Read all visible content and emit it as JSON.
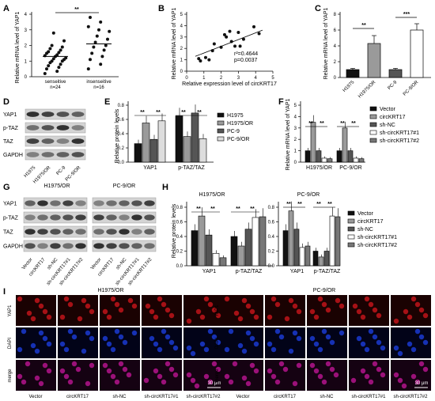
{
  "panels": {
    "A": {
      "label": "A",
      "ylabel": "Relative mRNA level of YAP1",
      "groups": [
        "senseitive",
        "insenseitive"
      ],
      "n": [
        "n=24",
        "n=16"
      ],
      "ticks": [
        "0",
        "1",
        "2",
        "3",
        "4"
      ],
      "sig": "**",
      "chart_data": {
        "type": "scatter",
        "ylim": [
          0,
          4
        ],
        "series": [
          {
            "name": "senseitive",
            "values": [
              0.2,
              0.35,
              0.5,
              0.6,
              0.7,
              0.8,
              0.9,
              1.0,
              1.0,
              1.1,
              1.15,
              1.2,
              1.3,
              1.35,
              1.4,
              1.5,
              1.55,
              1.6,
              1.7,
              1.8,
              1.9,
              2.0,
              2.3,
              2.8
            ]
          },
          {
            "name": "insenseitive",
            "values": [
              0.5,
              0.8,
              1.1,
              1.3,
              1.5,
              1.7,
              1.9,
              2.0,
              2.2,
              2.4,
              2.6,
              2.9,
              3.0,
              3.2,
              3.5,
              3.8
            ]
          }
        ],
        "means": [
          1.3,
          2.1
        ]
      }
    },
    "B": {
      "label": "B",
      "ylabel": "Relative mRNA level of YAP1",
      "xlabel": "Relative expression level of circKRT17",
      "r2": "r²=0.4644",
      "p": "p=0.0037",
      "xticks": [
        "0",
        "1",
        "2",
        "3",
        "4",
        "5"
      ],
      "yticks": [
        "0",
        "1",
        "2",
        "3",
        "4",
        "5"
      ],
      "chart_data": {
        "type": "scatter",
        "xlim": [
          0,
          5
        ],
        "ylim": [
          0,
          5
        ],
        "points": [
          [
            0.7,
            1.1
          ],
          [
            0.8,
            0.9
          ],
          [
            1.1,
            1.2
          ],
          [
            1.3,
            1.0
          ],
          [
            1.5,
            1.8
          ],
          [
            1.6,
            2.4
          ],
          [
            2.0,
            2.1
          ],
          [
            2.2,
            3.2
          ],
          [
            2.3,
            3.0
          ],
          [
            2.5,
            3.5
          ],
          [
            2.6,
            2.6
          ],
          [
            2.8,
            2.2
          ],
          [
            3.0,
            3.4
          ],
          [
            3.1,
            2.2
          ],
          [
            3.3,
            2.8
          ],
          [
            3.9,
            3.9
          ],
          [
            4.2,
            3.3
          ]
        ],
        "fit": [
          [
            0.5,
            1.3
          ],
          [
            4.4,
            3.6
          ]
        ]
      }
    },
    "C": {
      "label": "C",
      "ylabel": "Relative mRNA level of YAP1",
      "yticks": [
        "0",
        "2",
        "4",
        "6",
        "8"
      ],
      "sig": [
        "**",
        "***"
      ],
      "chart_data": {
        "type": "bar",
        "categories": [
          "H1975",
          "H1975/OR",
          "PC-9",
          "PC-9/OR"
        ],
        "values": [
          1.0,
          4.3,
          1.0,
          6.0
        ],
        "errors": [
          0.15,
          1.0,
          0.15,
          0.8
        ],
        "colors": [
          "#111111",
          "#9a9a9a",
          "#555555",
          "#ffffff"
        ],
        "ylim": [
          0,
          8
        ]
      }
    },
    "D": {
      "label": "D",
      "rows": [
        "YAP1",
        "p-TAZ",
        "TAZ",
        "GAPDH"
      ],
      "lanes": [
        "H1975",
        "H1975/OR",
        "PC-9",
        "PC-9/OR"
      ]
    },
    "E": {
      "label": "E",
      "ylabel": "Relative protein levels",
      "yticks": [
        "0.0",
        "0.2",
        "0.4",
        "0.6",
        "0.8"
      ],
      "sig": "**",
      "legend": [
        "H1975",
        "H1975/OR",
        "PC-9",
        "PC-9/OR"
      ],
      "chart_data": {
        "type": "bar",
        "categories": [
          "YAP1",
          "p-TAZ/TAZ"
        ],
        "ylim": [
          0,
          0.8
        ],
        "series": [
          {
            "name": "H1975",
            "values": [
              0.26,
              0.65
            ]
          },
          {
            "name": "H1975/OR",
            "values": [
              0.55,
              0.36
            ]
          },
          {
            "name": "PC-9",
            "values": [
              0.32,
              0.69
            ]
          },
          {
            "name": "PC-9/OR",
            "values": [
              0.58,
              0.33
            ]
          }
        ],
        "colors": [
          "#111111",
          "#9a9a9a",
          "#555555",
          "#dddddd"
        ]
      }
    },
    "F": {
      "label": "F",
      "ylabel": "Relative mRNA level of YAP1",
      "yticks": [
        "0",
        "1",
        "2",
        "3",
        "4",
        "5"
      ],
      "sig": "**",
      "legend": [
        "Vector",
        "circKRT17",
        "sh-NC",
        "sh-circKRT17#1",
        "sh-circKRT17#2"
      ],
      "chart_data": {
        "type": "bar",
        "categories": [
          "H1975/OR",
          "PC-9/OR"
        ],
        "ylim": [
          0,
          5
        ],
        "series": [
          {
            "name": "Vector",
            "values": [
              1.0,
              1.0
            ]
          },
          {
            "name": "circKRT17",
            "values": [
              3.5,
              3.0
            ]
          },
          {
            "name": "sh-NC",
            "values": [
              1.0,
              1.0
            ]
          },
          {
            "name": "sh-circKRT17#1",
            "values": [
              0.35,
              0.35
            ]
          },
          {
            "name": "sh-circKRT17#2",
            "values": [
              0.3,
              0.3
            ]
          }
        ],
        "colors": [
          "#111111",
          "#9a9a9a",
          "#555555",
          "#ffffff",
          "#777777"
        ]
      }
    },
    "G": {
      "label": "G",
      "title_left": "H1975/OR",
      "title_right": "PC-9/OR",
      "rows": [
        "YAP1",
        "p-TAZ",
        "TAZ",
        "GAPDH"
      ],
      "lanes": [
        "Vector",
        "circKRT17",
        "sh-NC",
        "sh-circKRT17#1",
        "sh-circKRT17#2"
      ]
    },
    "H": {
      "label": "H",
      "title_left": "H1975/OR",
      "title_right": "PC-9/OR",
      "ylabel": "Relative protein levels",
      "yticks": [
        "0.0",
        "0.2",
        "0.4",
        "0.6",
        "0.8"
      ],
      "legend": [
        "Vector",
        "circKRT17",
        "sh-NC",
        "sh-circKRT17#1",
        "sh-circKRT17#2"
      ],
      "chart_data": [
        {
          "type": "bar",
          "name": "H1975/OR",
          "categories": [
            "YAP1",
            "p-TAZ/TAZ"
          ],
          "ylim": [
            0,
            0.8
          ],
          "series": [
            {
              "name": "Vector",
              "values": [
                0.48,
                0.4
              ]
            },
            {
              "name": "circKRT17",
              "values": [
                0.68,
                0.27
              ]
            },
            {
              "name": "sh-NC",
              "values": [
                0.42,
                0.5
              ]
            },
            {
              "name": "sh-circKRT17#1",
              "values": [
                0.17,
                0.66
              ]
            },
            {
              "name": "sh-circKRT17#2",
              "values": [
                0.11,
                0.67
              ]
            }
          ]
        },
        {
          "type": "bar",
          "name": "PC-9/OR",
          "categories": [
            "YAP1",
            "p-TAZ/TAZ"
          ],
          "ylim": [
            0,
            0.8
          ],
          "series": [
            {
              "name": "Vector",
              "values": [
                0.48,
                0.2
              ]
            },
            {
              "name": "circKRT17",
              "values": [
                0.75,
                0.12
              ]
            },
            {
              "name": "sh-NC",
              "values": [
                0.5,
                0.2
              ]
            },
            {
              "name": "sh-circKRT17#1",
              "values": [
                0.25,
                0.68
              ]
            },
            {
              "name": "sh-circKRT17#2",
              "values": [
                0.27,
                0.67
              ]
            }
          ]
        }
      ]
    },
    "I": {
      "label": "I",
      "title_left": "H1975/OR",
      "title_right": "PC-9/OR",
      "rows": [
        "YAP1",
        "DAPI",
        "merge"
      ],
      "cols": [
        "Vector",
        "circKRT17",
        "sh-NC",
        "sh-circKRT17#1",
        "sh-circKRT17#2"
      ],
      "scale": "30 μm"
    }
  },
  "colors": {
    "bar5": [
      "#111111",
      "#9a9a9a",
      "#555555",
      "#ffffff",
      "#777777"
    ]
  }
}
